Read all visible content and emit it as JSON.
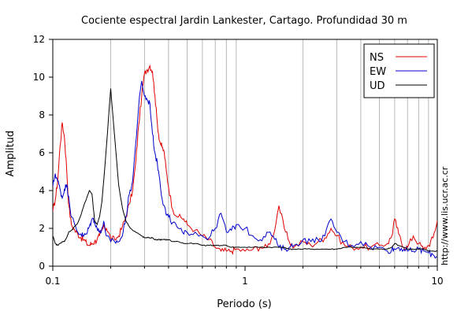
{
  "chart_data": {
    "type": "line",
    "title": "Cociente espectral Jardin Lankester, Cartago. Profundidad 30 m",
    "xlabel": "Periodo (s)",
    "ylabel": "Amplitud",
    "xscale": "log",
    "xlim": [
      0.1,
      10
    ],
    "ylim": [
      0,
      12
    ],
    "x_ticks": [
      0.1,
      1,
      10
    ],
    "x_tick_labels": [
      "0.1",
      "1",
      "10"
    ],
    "y_ticks": [
      0,
      2,
      4,
      6,
      8,
      10,
      12
    ],
    "y_tick_labels": [
      "0",
      "2",
      "4",
      "6",
      "8",
      "10",
      "12"
    ],
    "grid": "vertical-minor",
    "legend_position": "top-right",
    "watermark": "http://www.lis.ucr.ac.cr",
    "series": [
      {
        "name": "NS",
        "color": "#e00000",
        "x": [
          0.1,
          0.103,
          0.106,
          0.109,
          0.112,
          0.115,
          0.118,
          0.121,
          0.125,
          0.13,
          0.135,
          0.14,
          0.145,
          0.15,
          0.155,
          0.16,
          0.165,
          0.17,
          0.175,
          0.18,
          0.185,
          0.19,
          0.2,
          0.21,
          0.22,
          0.23,
          0.24,
          0.25,
          0.26,
          0.27,
          0.28,
          0.29,
          0.3,
          0.31,
          0.32,
          0.33,
          0.34,
          0.35,
          0.36,
          0.37,
          0.38,
          0.39,
          0.4,
          0.42,
          0.45,
          0.48,
          0.5,
          0.55,
          0.6,
          0.65,
          0.7,
          0.75,
          0.8,
          0.85,
          0.9,
          1.0,
          1.1,
          1.2,
          1.3,
          1.4,
          1.5,
          1.6,
          1.7,
          1.8,
          2.0,
          2.2,
          2.4,
          2.6,
          2.8,
          3.0,
          3.3,
          3.6,
          4.0,
          4.5,
          5.0,
          5.5,
          5.8,
          6.0,
          6.3,
          6.7,
          7.0,
          7.5,
          8.0,
          8.5,
          9.0,
          9.5,
          10.0
        ],
        "y": [
          2.9,
          3.5,
          4.5,
          6.3,
          7.6,
          6.8,
          5.2,
          3.2,
          2.2,
          1.9,
          1.7,
          1.5,
          1.4,
          1.2,
          1.1,
          1.2,
          1.3,
          1.4,
          1.6,
          1.9,
          2.1,
          2.0,
          1.5,
          1.4,
          1.6,
          2.1,
          2.6,
          3.3,
          4.0,
          5.5,
          7.5,
          9.0,
          10.2,
          10.4,
          10.6,
          10.3,
          9.0,
          7.5,
          6.6,
          6.3,
          6.0,
          5.0,
          4.2,
          3.0,
          2.6,
          2.5,
          2.2,
          1.9,
          1.6,
          1.4,
          1.0,
          0.8,
          0.8,
          0.8,
          0.9,
          0.8,
          0.9,
          1.0,
          1.0,
          1.6,
          3.2,
          2.0,
          1.3,
          1.0,
          1.3,
          1.1,
          1.3,
          1.5,
          2.0,
          1.6,
          1.1,
          1.0,
          1.0,
          1.0,
          1.1,
          1.2,
          1.6,
          2.5,
          1.7,
          1.0,
          1.0,
          1.6,
          1.2,
          0.9,
          1.1,
          1.5,
          2.4
        ]
      },
      {
        "name": "EW",
        "color": "#0000cc",
        "x": [
          0.1,
          0.103,
          0.106,
          0.109,
          0.112,
          0.115,
          0.118,
          0.121,
          0.125,
          0.13,
          0.135,
          0.14,
          0.145,
          0.15,
          0.155,
          0.16,
          0.165,
          0.17,
          0.175,
          0.18,
          0.185,
          0.19,
          0.2,
          0.21,
          0.22,
          0.23,
          0.24,
          0.25,
          0.26,
          0.27,
          0.28,
          0.29,
          0.3,
          0.31,
          0.32,
          0.33,
          0.34,
          0.35,
          0.36,
          0.37,
          0.38,
          0.39,
          0.4,
          0.42,
          0.45,
          0.48,
          0.5,
          0.55,
          0.6,
          0.65,
          0.7,
          0.75,
          0.8,
          0.85,
          0.9,
          1.0,
          1.1,
          1.2,
          1.3,
          1.4,
          1.5,
          1.6,
          1.7,
          1.8,
          2.0,
          2.2,
          2.4,
          2.6,
          2.8,
          3.0,
          3.3,
          3.6,
          4.0,
          4.5,
          5.0,
          5.5,
          5.8,
          6.0,
          6.3,
          6.7,
          7.0,
          7.5,
          8.0,
          8.5,
          9.0,
          9.5,
          10.0
        ],
        "y": [
          4.2,
          4.9,
          4.5,
          4.1,
          3.6,
          4.1,
          4.3,
          3.7,
          2.6,
          2.2,
          1.8,
          1.7,
          1.6,
          1.7,
          2.1,
          2.5,
          2.4,
          2.0,
          1.8,
          2.0,
          2.3,
          1.6,
          1.3,
          1.3,
          1.3,
          1.6,
          2.6,
          3.8,
          4.5,
          6.5,
          8.5,
          9.8,
          9.0,
          8.8,
          8.6,
          7.0,
          6.0,
          5.4,
          4.6,
          3.6,
          3.2,
          2.7,
          2.6,
          2.3,
          2.0,
          1.7,
          1.8,
          1.8,
          1.6,
          1.5,
          2.0,
          2.8,
          1.8,
          1.9,
          2.2,
          2.0,
          1.6,
          1.4,
          1.8,
          1.6,
          1.0,
          0.9,
          1.0,
          1.1,
          1.4,
          1.3,
          1.4,
          1.6,
          2.5,
          1.8,
          1.3,
          1.1,
          1.3,
          1.0,
          1.0,
          0.8,
          0.9,
          0.9,
          1.0,
          0.9,
          0.8,
          0.8,
          0.9,
          0.8,
          0.7,
          0.6,
          0.5
        ]
      },
      {
        "name": "UD",
        "color": "#000000",
        "x": [
          0.1,
          0.103,
          0.106,
          0.109,
          0.112,
          0.115,
          0.118,
          0.121,
          0.125,
          0.13,
          0.135,
          0.14,
          0.145,
          0.15,
          0.155,
          0.16,
          0.165,
          0.17,
          0.175,
          0.18,
          0.185,
          0.19,
          0.2,
          0.21,
          0.22,
          0.23,
          0.24,
          0.25,
          0.26,
          0.27,
          0.28,
          0.29,
          0.3,
          0.31,
          0.32,
          0.33,
          0.34,
          0.35,
          0.36,
          0.37,
          0.38,
          0.39,
          0.4,
          0.42,
          0.45,
          0.48,
          0.5,
          0.55,
          0.6,
          0.65,
          0.7,
          0.75,
          0.8,
          0.85,
          0.9,
          1.0,
          1.1,
          1.2,
          1.3,
          1.4,
          1.5,
          1.6,
          1.7,
          1.8,
          2.0,
          2.2,
          2.4,
          2.6,
          2.8,
          3.0,
          3.3,
          3.6,
          4.0,
          4.5,
          5.0,
          5.5,
          5.8,
          6.0,
          6.3,
          6.7,
          7.0,
          7.5,
          8.0,
          8.5,
          9.0,
          9.5,
          10.0
        ],
        "y": [
          1.6,
          1.2,
          1.1,
          1.2,
          1.3,
          1.3,
          1.5,
          1.8,
          1.9,
          2.1,
          2.3,
          2.7,
          3.2,
          3.6,
          4.0,
          3.8,
          2.4,
          2.2,
          2.6,
          3.4,
          4.8,
          6.3,
          9.4,
          6.8,
          4.3,
          3.1,
          2.4,
          2.1,
          1.9,
          1.8,
          1.7,
          1.6,
          1.5,
          1.5,
          1.5,
          1.5,
          1.4,
          1.4,
          1.4,
          1.4,
          1.4,
          1.4,
          1.4,
          1.3,
          1.3,
          1.2,
          1.2,
          1.2,
          1.1,
          1.1,
          1.1,
          1.1,
          1.1,
          1.0,
          1.0,
          1.0,
          1.0,
          1.0,
          1.0,
          1.0,
          1.0,
          1.0,
          0.9,
          0.9,
          0.9,
          0.9,
          0.9,
          0.9,
          0.9,
          0.9,
          1.0,
          1.0,
          1.0,
          0.9,
          0.9,
          0.9,
          1.0,
          1.2,
          1.1,
          1.0,
          0.9,
          0.9,
          0.9,
          0.9,
          0.8,
          0.8,
          0.8
        ]
      }
    ]
  }
}
